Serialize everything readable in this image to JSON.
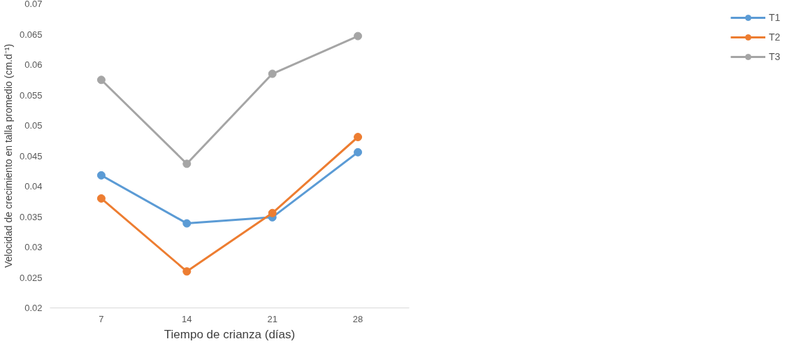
{
  "chart_data": {
    "type": "line",
    "xlabel": "Tiempo de crianza (días)",
    "ylabel": "Velocidad de crecimiento en talla promedio (cm.d⁻¹)",
    "categories": [
      "7",
      "14",
      "21",
      "28"
    ],
    "series": [
      {
        "name": "T1",
        "color": "#5b9bd5",
        "values": [
          0.0418,
          0.0339,
          0.0349,
          0.0456
        ]
      },
      {
        "name": "T2",
        "color": "#ed7d31",
        "values": [
          0.038,
          0.026,
          0.0356,
          0.0481
        ]
      },
      {
        "name": "T3",
        "color": "#a5a5a5",
        "values": [
          0.0575,
          0.0437,
          0.0585,
          0.0647
        ]
      }
    ],
    "ylim": [
      0.02,
      0.07
    ],
    "yticks": [
      0.02,
      0.025,
      0.03,
      0.035,
      0.04,
      0.045,
      0.05,
      0.055,
      0.06,
      0.065,
      0.07
    ],
    "grid": false,
    "legend": "right",
    "marker": "circle",
    "line_style": "solid"
  }
}
